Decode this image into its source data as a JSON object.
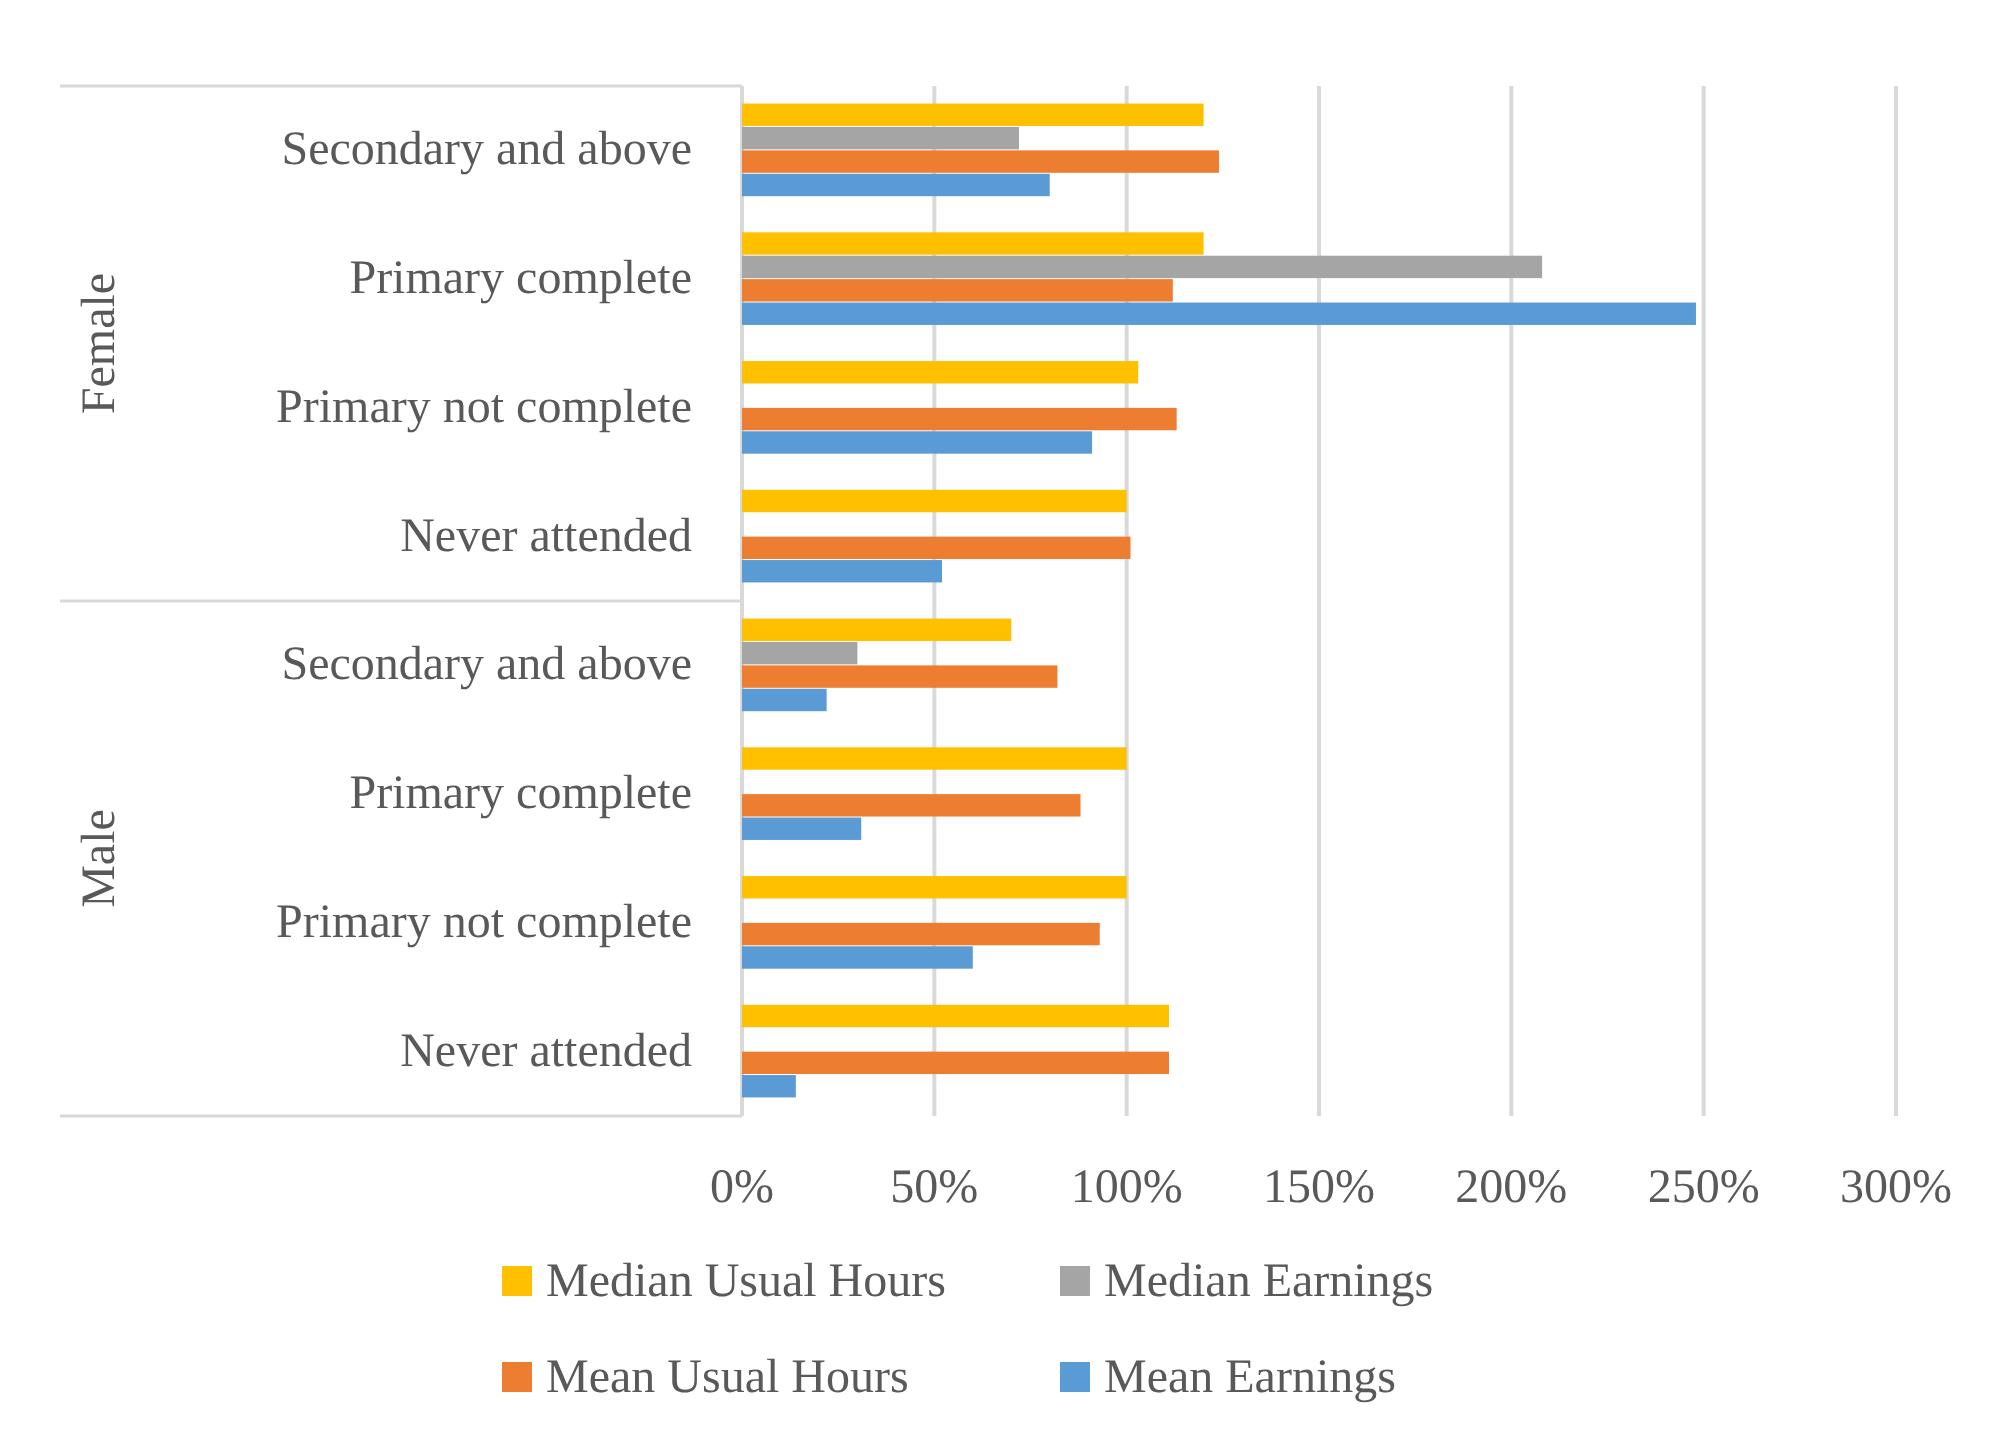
{
  "chart_data": {
    "type": "bar",
    "orientation": "horizontal",
    "categories": [
      "Secondary and above",
      "Primary complete",
      "Primary not complete",
      "Never attended",
      "Secondary and above",
      "Primary complete",
      "Primary not complete",
      "Never attended"
    ],
    "annotations": [
      "Female",
      "Male"
    ],
    "series": [
      {
        "name": "Median Usual Hours",
        "color": "#ffc000",
        "values": [
          120,
          120,
          103,
          100,
          70,
          100,
          100,
          111
        ]
      },
      {
        "name": "Median Earnings",
        "color": "#a5a5a5",
        "values": [
          72,
          208,
          null,
          null,
          30,
          null,
          null,
          null
        ]
      },
      {
        "name": "Mean Usual Hours",
        "color": "#ed7d31",
        "values": [
          124,
          112,
          113,
          101,
          82,
          88,
          93,
          111
        ]
      },
      {
        "name": "Mean Earnings",
        "color": "#5b9bd5",
        "values": [
          80,
          248,
          91,
          52,
          22,
          31,
          60,
          14
        ]
      }
    ],
    "xlim": [
      0,
      300
    ],
    "xticks": [
      {
        "value": 0,
        "label": "0%"
      },
      {
        "value": 50,
        "label": "50%"
      },
      {
        "value": 100,
        "label": "100%"
      },
      {
        "value": 150,
        "label": "150%"
      },
      {
        "value": 200,
        "label": "200%"
      },
      {
        "value": 250,
        "label": "250%"
      },
      {
        "value": 300,
        "label": "300%"
      }
    ],
    "grid": "x",
    "legend": "bottom"
  }
}
